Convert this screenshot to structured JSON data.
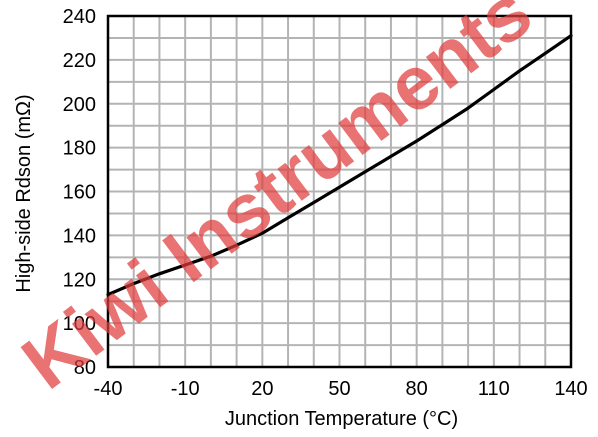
{
  "chart_data": {
    "type": "line",
    "xlabel": "Junction Temperature (°C)",
    "ylabel": "High-side Rdson (mΩ)",
    "xlim": [
      -40,
      140
    ],
    "ylim": [
      80,
      240
    ],
    "x_ticks": [
      -40,
      -10,
      20,
      50,
      80,
      110,
      140
    ],
    "y_ticks": [
      80,
      100,
      120,
      140,
      160,
      180,
      200,
      220,
      240
    ],
    "x_tick_labels": [
      "-40",
      "-10",
      "20",
      "50",
      "80",
      "110",
      "140"
    ],
    "y_tick_labels": [
      "80",
      "100",
      "120",
      "140",
      "160",
      "180",
      "200",
      "220",
      "240"
    ],
    "grid": true,
    "minor_grid_step_x": 10,
    "minor_grid_step_y": 10,
    "line_color": "#000000",
    "grid_color": "#b4b4b4",
    "series": [
      {
        "x": [
          -40,
          -30,
          -20,
          -10,
          0,
          10,
          20,
          30,
          40,
          50,
          60,
          70,
          80,
          90,
          100,
          110,
          120,
          130,
          140
        ],
        "y": [
          113,
          118,
          122.5,
          126.5,
          130.5,
          135.5,
          141,
          148,
          155,
          162,
          169,
          176,
          183,
          190.5,
          198,
          206.5,
          215,
          223,
          231
        ]
      }
    ]
  },
  "watermark": {
    "text": "Kiwi Instruments",
    "color": "#e03b3b"
  }
}
